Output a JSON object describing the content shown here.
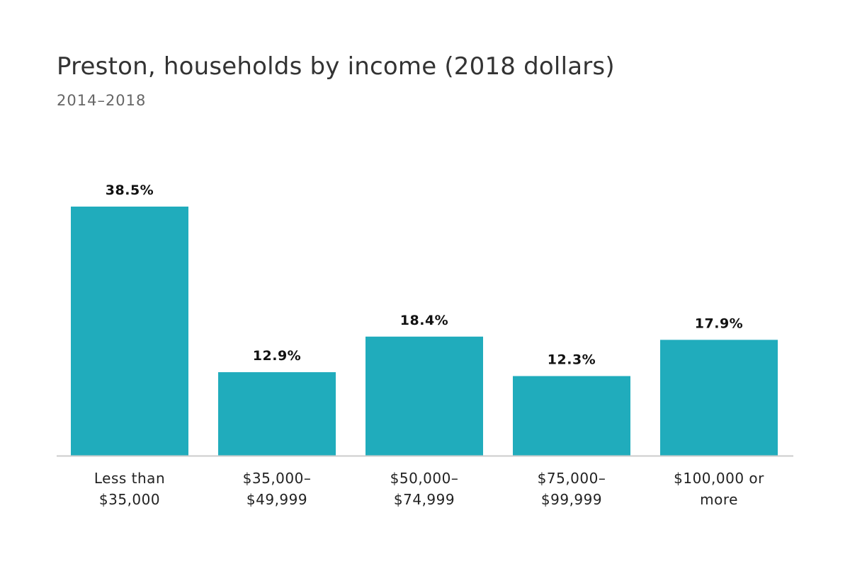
{
  "chart_data": {
    "type": "bar",
    "title": "Preston, households by income (2018 dollars)",
    "subtitle": "2014–2018",
    "categories": [
      [
        "Less than",
        "$35,000"
      ],
      [
        "$35,000–",
        "$49,999"
      ],
      [
        "$50,000–",
        "$74,999"
      ],
      [
        "$75,000–",
        "$99,999"
      ],
      [
        "$100,000 or",
        "more"
      ]
    ],
    "values": [
      38.5,
      12.9,
      18.4,
      12.3,
      17.9
    ],
    "value_labels": [
      "38.5%",
      "12.9%",
      "18.4%",
      "12.3%",
      "17.9%"
    ],
    "xlabel": "",
    "ylabel": "",
    "ylim": [
      0,
      40
    ],
    "grid": false,
    "legend": "none",
    "bar_color": "#20acbc",
    "baseline_color": "#cccccc"
  }
}
